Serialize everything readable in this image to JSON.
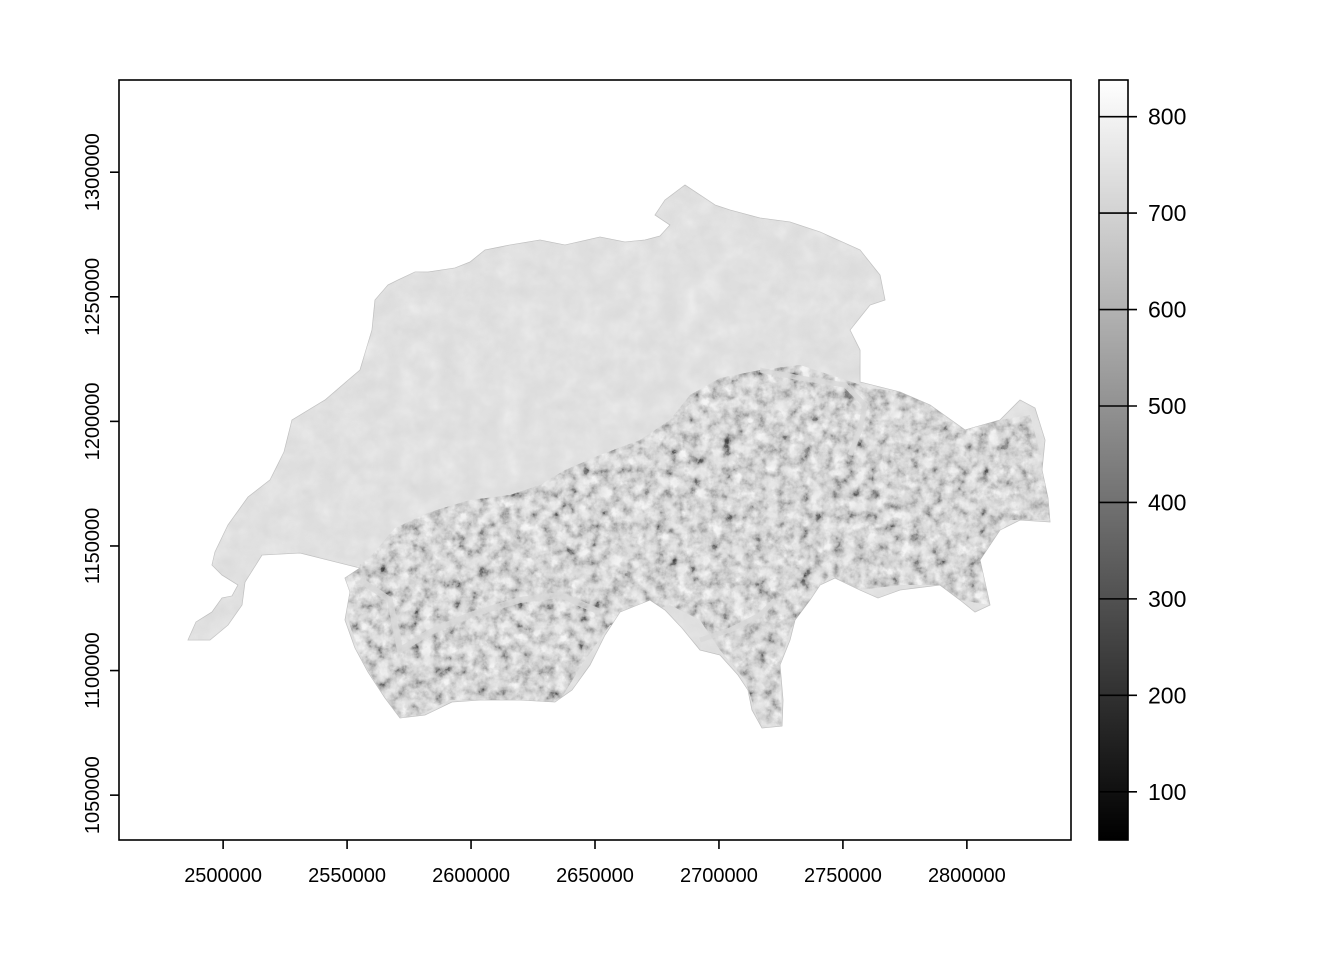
{
  "chart_data": {
    "type": "heatmap",
    "title": "",
    "xlabel": "",
    "ylabel": "",
    "xlim": [
      2458000,
      2842000
    ],
    "ylim": [
      1032000,
      1337000
    ],
    "x_ticks": [
      "2500000",
      "2550000",
      "2600000",
      "2650000",
      "2700000",
      "2750000",
      "2800000"
    ],
    "y_ticks": [
      "1050000",
      "1100000",
      "1150000",
      "1200000",
      "1250000",
      "1300000"
    ],
    "colorbar": {
      "range": [
        50,
        838
      ],
      "ticks": [
        "100",
        "200",
        "300",
        "400",
        "500",
        "600",
        "700",
        "800"
      ],
      "colors": [
        "#000000",
        "#ffffff"
      ],
      "placement": "right"
    },
    "raster_description": "Grayscale hillshade of Switzerland; light flat plateau in the north, dense shaded Alpine relief in the south and east"
  }
}
